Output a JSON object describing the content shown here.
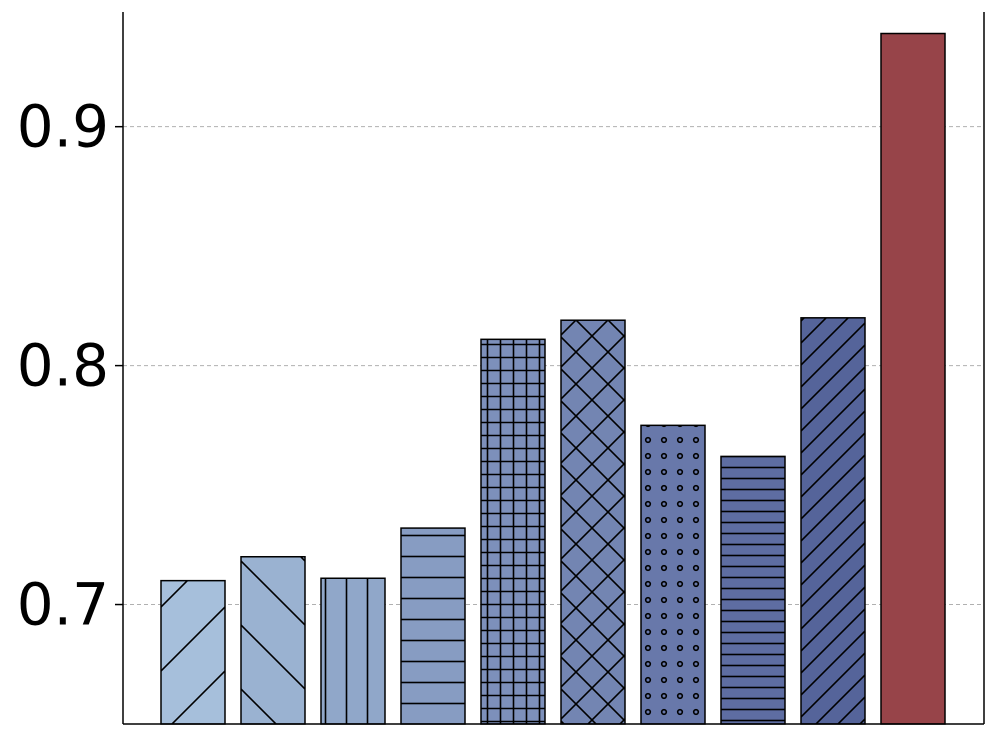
{
  "chart_data": {
    "type": "bar",
    "categories": [
      "",
      "",
      "",
      "",
      "",
      "",
      "",
      "",
      "",
      ""
    ],
    "values": [
      0.71,
      0.72,
      0.711,
      0.732,
      0.811,
      0.819,
      0.775,
      0.762,
      0.82,
      0.939
    ],
    "colors": [
      "#a6bfdb",
      "#9ab2d1",
      "#90a7c9",
      "#879cc2",
      "#7d90bb",
      "#7385b2",
      "#6878aa",
      "#5e6da2",
      "#55649a",
      "#974449"
    ],
    "hatches": [
      "diag-fwd",
      "diag-back",
      "vertical",
      "horizontal",
      "grid",
      "cross",
      "dots",
      "horizontal-dense",
      "diag-fwd-dense",
      "none"
    ],
    "title": "",
    "xlabel": "",
    "ylabel": "",
    "ylim": [
      0.65,
      0.948
    ],
    "yticks": [
      0.7,
      0.8,
      0.9
    ],
    "ytick_labels": [
      "0.7",
      "0.8",
      "0.9"
    ],
    "grid": "horizontal-dashed",
    "legend": "none"
  }
}
